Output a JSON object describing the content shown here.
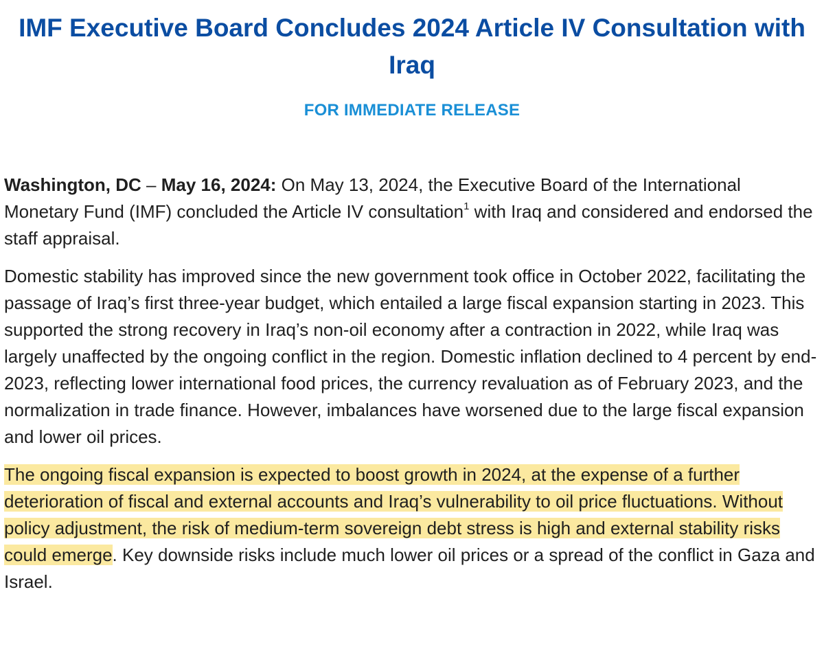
{
  "header": {
    "title": "IMF Executive Board Concludes 2024 Article IV Consultation with Iraq",
    "release": "FOR IMMEDIATE RELEASE"
  },
  "paragraphs": {
    "p1": {
      "location": "Washington, DC",
      "dash": "–",
      "date": "May 16, 2024:",
      "text_a": " On May 13, 2024, the Executive Board of the International Monetary Fund (IMF) concluded the Article IV consultation",
      "footnote": "1",
      "text_b": " with Iraq and considered and endorsed the staff appraisal."
    },
    "p2": {
      "text": "Domestic stability has improved since the new government took office in October 2022, facilitating the passage of Iraq’s first three-year budget, which entailed a large fiscal expansion starting in 2023. This supported the strong recovery in Iraq’s non-oil economy after a contraction in 2022, while Iraq was largely unaffected by the ongoing conflict in the region. Domestic inflation declined to 4 percent by end-2023, reflecting lower international food prices, the currency revaluation as of February 2023, and the normalization in trade finance. However, imbalances have worsened due to the large fiscal expansion and lower oil prices."
    },
    "p3": {
      "highlighted": "The ongoing fiscal expansion is expected to boost growth in 2024, at the expense of a further deterioration of fiscal and external accounts and Iraq’s vulnerability to oil price fluctuations. Without policy adjustment, the risk of medium-term sovereign debt stress is high and external stability risks could emerge",
      "rest": ". Key downside risks include much lower oil prices or a spread of the conflict in Gaza and Israel."
    }
  },
  "colors": {
    "title": "#0b4da2",
    "release": "#1a8fd6",
    "highlight": "#fbe9a0"
  }
}
